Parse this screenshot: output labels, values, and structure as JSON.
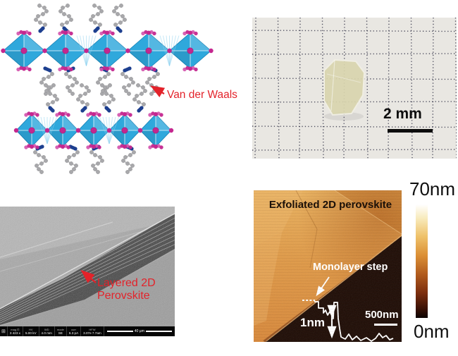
{
  "panels": {
    "structure": {
      "annotation": "Van der Waals",
      "colors": {
        "octahedron_blue": "#2fa8dc",
        "octahedron_edge": "#1580b5",
        "octahedron_fan": "#8fd2f0",
        "atom_magenta": "#c4278f",
        "atom_magenta_light": "#d55ab0",
        "atom_magenta_dark": "#9c1b72",
        "chain_gray": "#a8a8ab",
        "bond_gray": "#b9b9bc",
        "ammonium_blue": "#1d3f8f",
        "annotation_red": "#e3222a"
      }
    },
    "photo": {
      "scale_label": "2 mm",
      "paper_color": "#e9e7e2",
      "grid_color": "#28283e",
      "crystal_color": "#d9d5ae"
    },
    "sem": {
      "annotation_line1": "Layered 2D",
      "annotation_line2": "Perovskite",
      "annotation_color": "#e3222a",
      "scale_label": "40 µm",
      "infobar": {
        "logo": "⊞",
        "labels": [
          "mag ⊡",
          "HV",
          "WD",
          "mode",
          "curr",
          "HFW"
        ],
        "values": [
          "3 423 x",
          "5.00 kV",
          "4.0 mm",
          "SE",
          "6.3 pA",
          "3.07e 7.7am"
        ]
      }
    },
    "afm": {
      "title": "Exfoliated 2D perovskite",
      "step_label": "Monolayer step",
      "height_label": "1nm",
      "scale_label": "500nm",
      "flake_color": "#e09a47",
      "substrate_color": "#1d0b04",
      "colorbar": {
        "max_label": "70nm",
        "min_label": "0nm",
        "gradient": [
          "#ffffff 0%",
          "#f8ebbd 12%",
          "#efc26a 28%",
          "#db8f35 45%",
          "#b05a1d 62%",
          "#7c2e0e 78%",
          "#391105 92%",
          "#0b0301 100%"
        ]
      }
    }
  }
}
